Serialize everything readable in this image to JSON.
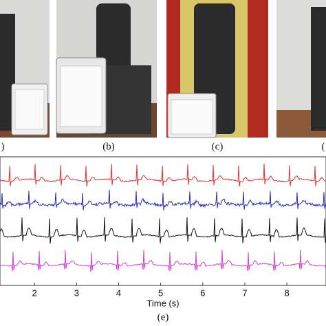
{
  "panels": [
    {
      "label": ")"
    },
    {
      "label": "(b)"
    },
    {
      "label": "(c)"
    },
    {
      "label": "("
    }
  ],
  "chart_data": {
    "type": "line",
    "xlabel": "Time (s)",
    "caption": "(e)",
    "xlim": [
      1.18,
      8.93
    ],
    "xticks": [
      2,
      3,
      4,
      5,
      6,
      7,
      8
    ],
    "series": [
      {
        "color": "#e03030"
      },
      {
        "color": "#2a2ab8"
      },
      {
        "color": "#111111"
      },
      {
        "color": "#d040d0"
      }
    ]
  }
}
